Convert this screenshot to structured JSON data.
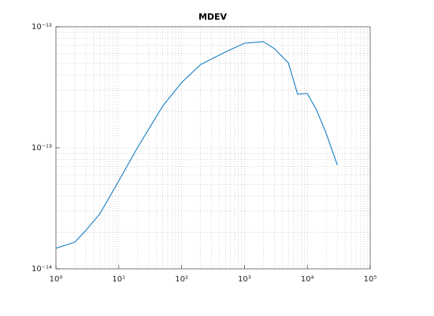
{
  "chart_data": {
    "type": "line",
    "title": "MDEV",
    "x": [
      1,
      2,
      3,
      5,
      10,
      20,
      50,
      100,
      200,
      500,
      1000,
      2000,
      3000,
      5000,
      7000,
      10000,
      14000,
      20000,
      30000
    ],
    "series": [
      {
        "name": "MDEV",
        "color": "#0072bd",
        "values": [
          1.48e-14,
          1.66e-14,
          2.08e-14,
          2.85e-14,
          5.33e-14,
          1.01e-13,
          2.21e-13,
          3.46e-13,
          4.87e-13,
          6.19e-13,
          7.31e-13,
          7.53e-13,
          6.58e-13,
          5.02e-13,
          2.77e-13,
          2.81e-13,
          2.05e-13,
          1.31e-13,
          7.2e-14
        ]
      }
    ],
    "xscale": "log",
    "yscale": "log",
    "xlim": [
      1,
      100000
    ],
    "ylim": [
      1e-14,
      1e-12
    ],
    "xticks": [
      {
        "value": 1,
        "label": "10⁰"
      },
      {
        "value": 10,
        "label": "10¹"
      },
      {
        "value": 100,
        "label": "10²"
      },
      {
        "value": 1000,
        "label": "10³"
      },
      {
        "value": 10000,
        "label": "10⁴"
      },
      {
        "value": 100000,
        "label": "10⁵"
      }
    ],
    "yticks": [
      {
        "value": 1e-14,
        "label": "10⁻¹⁴"
      },
      {
        "value": 1e-13,
        "label": "10⁻¹³"
      },
      {
        "value": 1e-12,
        "label": "10⁻¹²"
      }
    ],
    "xminorticks": [
      2,
      3,
      4,
      5,
      6,
      7,
      8,
      9,
      20,
      30,
      40,
      50,
      60,
      70,
      80,
      90,
      200,
      300,
      400,
      500,
      600,
      700,
      800,
      900,
      2000,
      3000,
      4000,
      5000,
      6000,
      7000,
      8000,
      9000,
      20000,
      30000,
      40000,
      50000,
      60000,
      70000,
      80000,
      90000
    ],
    "yminorticks": [
      2e-14,
      3e-14,
      4e-14,
      5e-14,
      6e-14,
      7e-14,
      8e-14,
      9e-14,
      2e-13,
      3e-13,
      4e-13,
      5e-13,
      6e-13,
      7e-13,
      8e-13,
      9e-13
    ],
    "grid": true
  }
}
